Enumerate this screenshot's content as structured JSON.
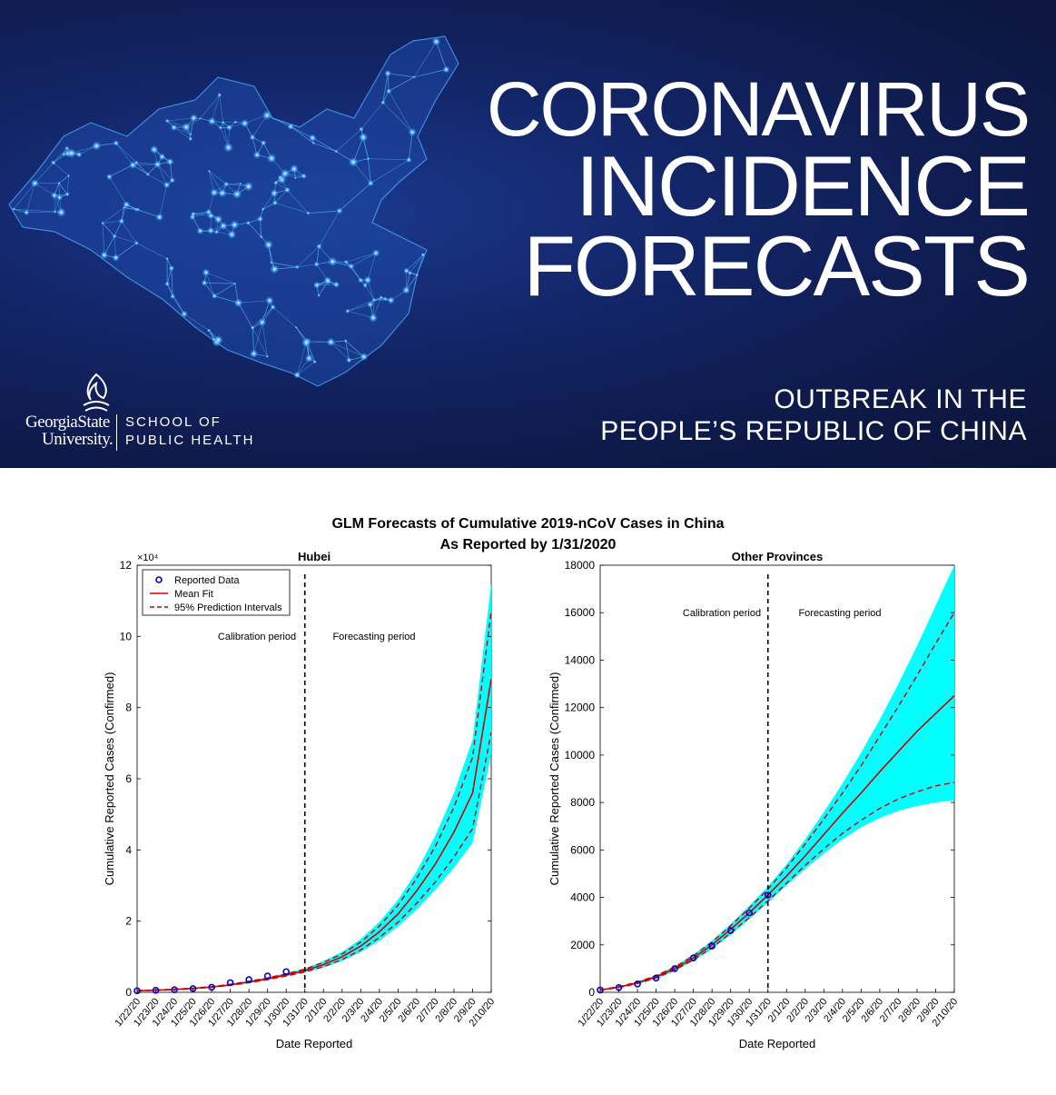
{
  "banner": {
    "title_lines": [
      "CORONAVIRUS",
      "INCIDENCE",
      "FORECASTS"
    ],
    "subtitle_lines": [
      "OUTBREAK IN THE",
      "PEOPLE’S REPUBLIC OF CHINA"
    ],
    "logo_university_lines": [
      "GeorgiaState",
      "University."
    ],
    "logo_school_lines": [
      "SCHOOL OF",
      "PUBLIC HEALTH"
    ],
    "colors": {
      "background": "#13266a",
      "network_glow": "#4fb4ff",
      "text": "#ffffff"
    }
  },
  "figure": {
    "title_lines": [
      "GLM Forecasts of Cumulative 2019-nCoV Cases in China",
      "As Reported by 1/31/2020"
    ]
  },
  "chart_data": [
    {
      "type": "line",
      "title": "Hubei",
      "xlabel": "Date Reported",
      "ylabel": "Cumulative Reported Cases (Confirmed)",
      "y_exponent_label": "×10⁴",
      "ylim": [
        0,
        120000
      ],
      "yticks": [
        0,
        20000,
        40000,
        60000,
        80000,
        100000,
        120000
      ],
      "ytick_labels": [
        "0",
        "2",
        "4",
        "6",
        "8",
        "10",
        "12"
      ],
      "x_categories": [
        "1/22/20",
        "1/23/20",
        "1/24/20",
        "1/25/20",
        "1/26/20",
        "1/27/20",
        "1/28/20",
        "1/29/20",
        "1/30/20",
        "1/31/20",
        "2/1/20",
        "2/2/20",
        "2/3/20",
        "2/4/20",
        "2/5/20",
        "2/6/20",
        "2/7/20",
        "2/8/20",
        "2/9/20",
        "2/10/20"
      ],
      "forecast_start": "1/31/20",
      "annotations": [
        "Calibration period",
        "Forecasting period"
      ],
      "legend": {
        "position": "top-left",
        "entries": [
          "Reported Data",
          "Mean Fit",
          "95% Prediction Intervals"
        ]
      },
      "grid": false,
      "series": [
        {
          "name": "Reported Data",
          "style": "markers",
          "color": "#0000cc",
          "values": [
            444,
            549,
            729,
            1052,
            1423,
            2714,
            3554,
            4586,
            5806,
            null,
            null,
            null,
            null,
            null,
            null,
            null,
            null,
            null,
            null,
            null
          ]
        },
        {
          "name": "Mean Fit",
          "style": "solid",
          "color": "#cc0000",
          "values": [
            450,
            600,
            800,
            1100,
            1500,
            2100,
            2900,
            3800,
            4900,
            6100,
            7800,
            10000,
            13000,
            17000,
            22000,
            28500,
            36000,
            45000,
            56000,
            88000
          ]
        },
        {
          "name": "95% Prediction Intervals",
          "style": "dashed",
          "color": "#cc0000",
          "bound": "upper",
          "values": [
            500,
            650,
            870,
            1180,
            1600,
            2250,
            3100,
            4050,
            5200,
            6500,
            8400,
            10800,
            14100,
            18600,
            24500,
            32000,
            41000,
            52000,
            66000,
            107000
          ]
        },
        {
          "name": "95% Prediction Intervals",
          "style": "dashed",
          "color": "#cc0000",
          "bound": "lower",
          "values": [
            400,
            550,
            740,
            1020,
            1400,
            1950,
            2700,
            3550,
            4600,
            5700,
            7200,
            9200,
            11900,
            15400,
            19700,
            25000,
            31000,
            38000,
            46000,
            73000
          ]
        },
        {
          "name": "Simulated fits",
          "style": "band",
          "color": "#00ffff",
          "lower": [
            380,
            520,
            700,
            980,
            1350,
            1880,
            2620,
            3450,
            4480,
            5550,
            6950,
            8800,
            11300,
            14500,
            18500,
            23300,
            28800,
            35000,
            42000,
            67000
          ],
          "upper": [
            520,
            680,
            900,
            1220,
            1650,
            2320,
            3200,
            4180,
            5350,
            6700,
            8800,
            11400,
            15000,
            19800,
            26000,
            34000,
            44000,
            56000,
            71000,
            115000
          ]
        }
      ]
    },
    {
      "type": "line",
      "title": "Other Provinces",
      "xlabel": "Date Reported",
      "ylabel": "Cumulative Reported Cases (Confirmed)",
      "ylim": [
        0,
        18000
      ],
      "yticks": [
        0,
        2000,
        4000,
        6000,
        8000,
        10000,
        12000,
        14000,
        16000,
        18000
      ],
      "ytick_labels": [
        "0",
        "2000",
        "4000",
        "6000",
        "8000",
        "10000",
        "12000",
        "14000",
        "16000",
        "18000"
      ],
      "x_categories": [
        "1/22/20",
        "1/23/20",
        "1/24/20",
        "1/25/20",
        "1/26/20",
        "1/27/20",
        "1/28/20",
        "1/29/20",
        "1/30/20",
        "1/31/20",
        "2/1/20",
        "2/2/20",
        "2/3/20",
        "2/4/20",
        "2/5/20",
        "2/6/20",
        "2/7/20",
        "2/8/20",
        "2/9/20",
        "2/10/20"
      ],
      "forecast_start": "1/31/20",
      "annotations": [
        "Calibration period",
        "Forecasting period"
      ],
      "grid": false,
      "series": [
        {
          "name": "Reported Data",
          "style": "markers",
          "color": "#0000cc",
          "values": [
            100,
            200,
            350,
            600,
            1000,
            1450,
            1950,
            2600,
            3350,
            4100,
            null,
            null,
            null,
            null,
            null,
            null,
            null,
            null,
            null,
            null
          ]
        },
        {
          "name": "Mean Fit",
          "style": "solid",
          "color": "#cc0000",
          "values": [
            100,
            220,
            400,
            650,
            1000,
            1450,
            2000,
            2650,
            3350,
            4100,
            4900,
            5750,
            6650,
            7550,
            8400,
            9300,
            10150,
            11000,
            11750,
            12500
          ]
        },
        {
          "name": "95% Prediction Intervals",
          "style": "dashed",
          "color": "#cc0000",
          "bound": "upper",
          "values": [
            110,
            240,
            430,
            700,
            1060,
            1540,
            2120,
            2800,
            3550,
            4350,
            5250,
            6250,
            7300,
            8400,
            9550,
            10800,
            12050,
            13350,
            14700,
            16000
          ]
        },
        {
          "name": "95% Prediction Intervals",
          "style": "dashed",
          "color": "#cc0000",
          "bound": "lower",
          "values": [
            90,
            200,
            370,
            600,
            940,
            1370,
            1880,
            2500,
            3150,
            3850,
            4600,
            5350,
            6050,
            6700,
            7250,
            7750,
            8150,
            8450,
            8700,
            8850
          ]
        },
        {
          "name": "Simulated fits",
          "style": "band",
          "color": "#00ffff",
          "lower": [
            80,
            190,
            350,
            580,
            900,
            1320,
            1820,
            2420,
            3080,
            3780,
            4500,
            5200,
            5850,
            6450,
            6950,
            7350,
            7650,
            7850,
            8000,
            8100
          ],
          "upper": [
            120,
            250,
            450,
            730,
            1100,
            1590,
            2180,
            2880,
            3650,
            4460,
            5400,
            6450,
            7600,
            8800,
            10100,
            11500,
            13000,
            14600,
            16300,
            18000
          ]
        }
      ]
    }
  ]
}
